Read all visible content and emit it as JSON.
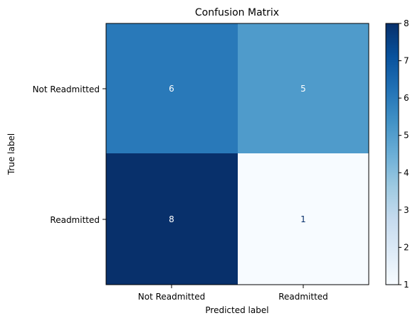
{
  "chart_data": {
    "type": "heatmap",
    "title": "Confusion Matrix",
    "xlabel": "Predicted label",
    "ylabel": "True label",
    "x_categories": [
      "Not Readmitted",
      "Readmitted"
    ],
    "y_categories": [
      "Not Readmitted",
      "Readmitted"
    ],
    "values": [
      [
        6,
        5
      ],
      [
        8,
        1
      ]
    ],
    "colormap": "Blues",
    "colorbar": {
      "min": 1,
      "max": 8,
      "ticks": [
        "1",
        "2",
        "3",
        "4",
        "5",
        "6",
        "7",
        "8"
      ]
    },
    "cells": [
      {
        "label": "6",
        "color": "#2979b9",
        "text_color": "#ffffff"
      },
      {
        "label": "5",
        "color": "#4f9bcb",
        "text_color": "#ffffff"
      },
      {
        "label": "8",
        "color": "#08306b",
        "text_color": "#ffffff"
      },
      {
        "label": "1",
        "color": "#f7fbff",
        "text_color": "#08306b"
      }
    ]
  }
}
